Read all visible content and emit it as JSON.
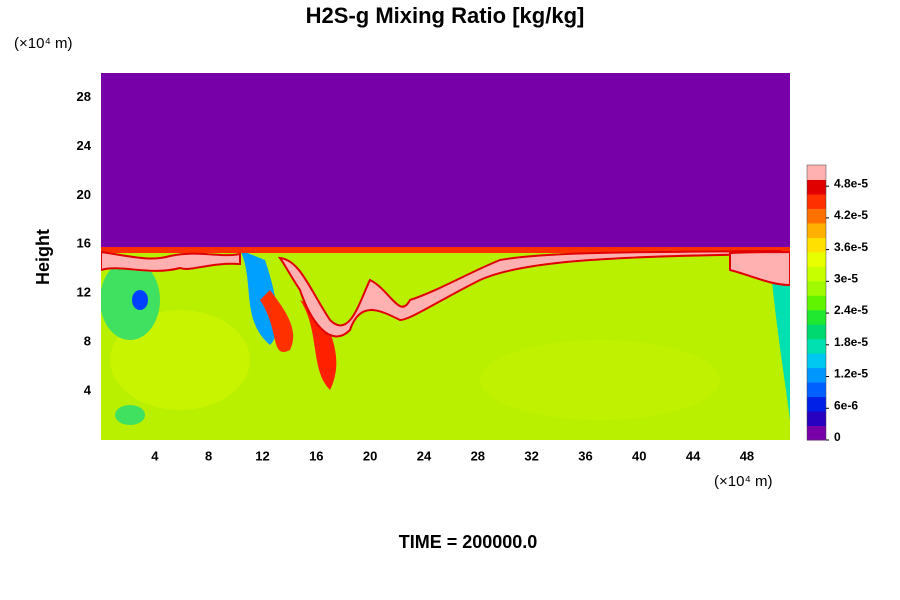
{
  "chart_data": {
    "type": "heatmap",
    "title": "H2S-g Mixing Ratio [kg/kg]",
    "y_label": "Height",
    "y_unit": "(×10⁴ m)",
    "x_unit": "(×10⁴ m)",
    "footer": "TIME = 200000.0",
    "xlim": [
      0,
      51.2
    ],
    "xticks": [
      4,
      8,
      12,
      16,
      20,
      24,
      28,
      32,
      36,
      40,
      44,
      48
    ],
    "ylim": [
      0,
      30
    ],
    "yticks": [
      4,
      8,
      12,
      16,
      20,
      24,
      28
    ],
    "colorbar_lim": [
      0,
      5.2e-05
    ],
    "colorbar_ticks": [
      0,
      {
        "value": 6e-06,
        "label": "6e-6"
      },
      {
        "value": 1.2e-05,
        "label": "1.2e-5"
      },
      {
        "value": 1.8e-05,
        "label": "1.8e-5"
      },
      {
        "value": 2.4e-05,
        "label": "2.4e-5"
      },
      {
        "value": 3e-05,
        "label": "3e-5"
      },
      {
        "value": 3.6e-05,
        "label": "3.6e-5"
      },
      {
        "value": 4.2e-05,
        "label": "4.2e-5"
      },
      {
        "value": 4.8e-05,
        "label": "4.8e-5"
      }
    ],
    "colors": [
      "#7800a8",
      "#2800c0",
      "#0020e8",
      "#0060ff",
      "#0098ff",
      "#00c8f0",
      "#00e0b0",
      "#00d870",
      "#20e830",
      "#60f400",
      "#a0fa00",
      "#c8ff00",
      "#e8ff00",
      "#ffe000",
      "#ffb000",
      "#ff7000",
      "#ff3000",
      "#e00000",
      "#ffb0b0"
    ]
  }
}
